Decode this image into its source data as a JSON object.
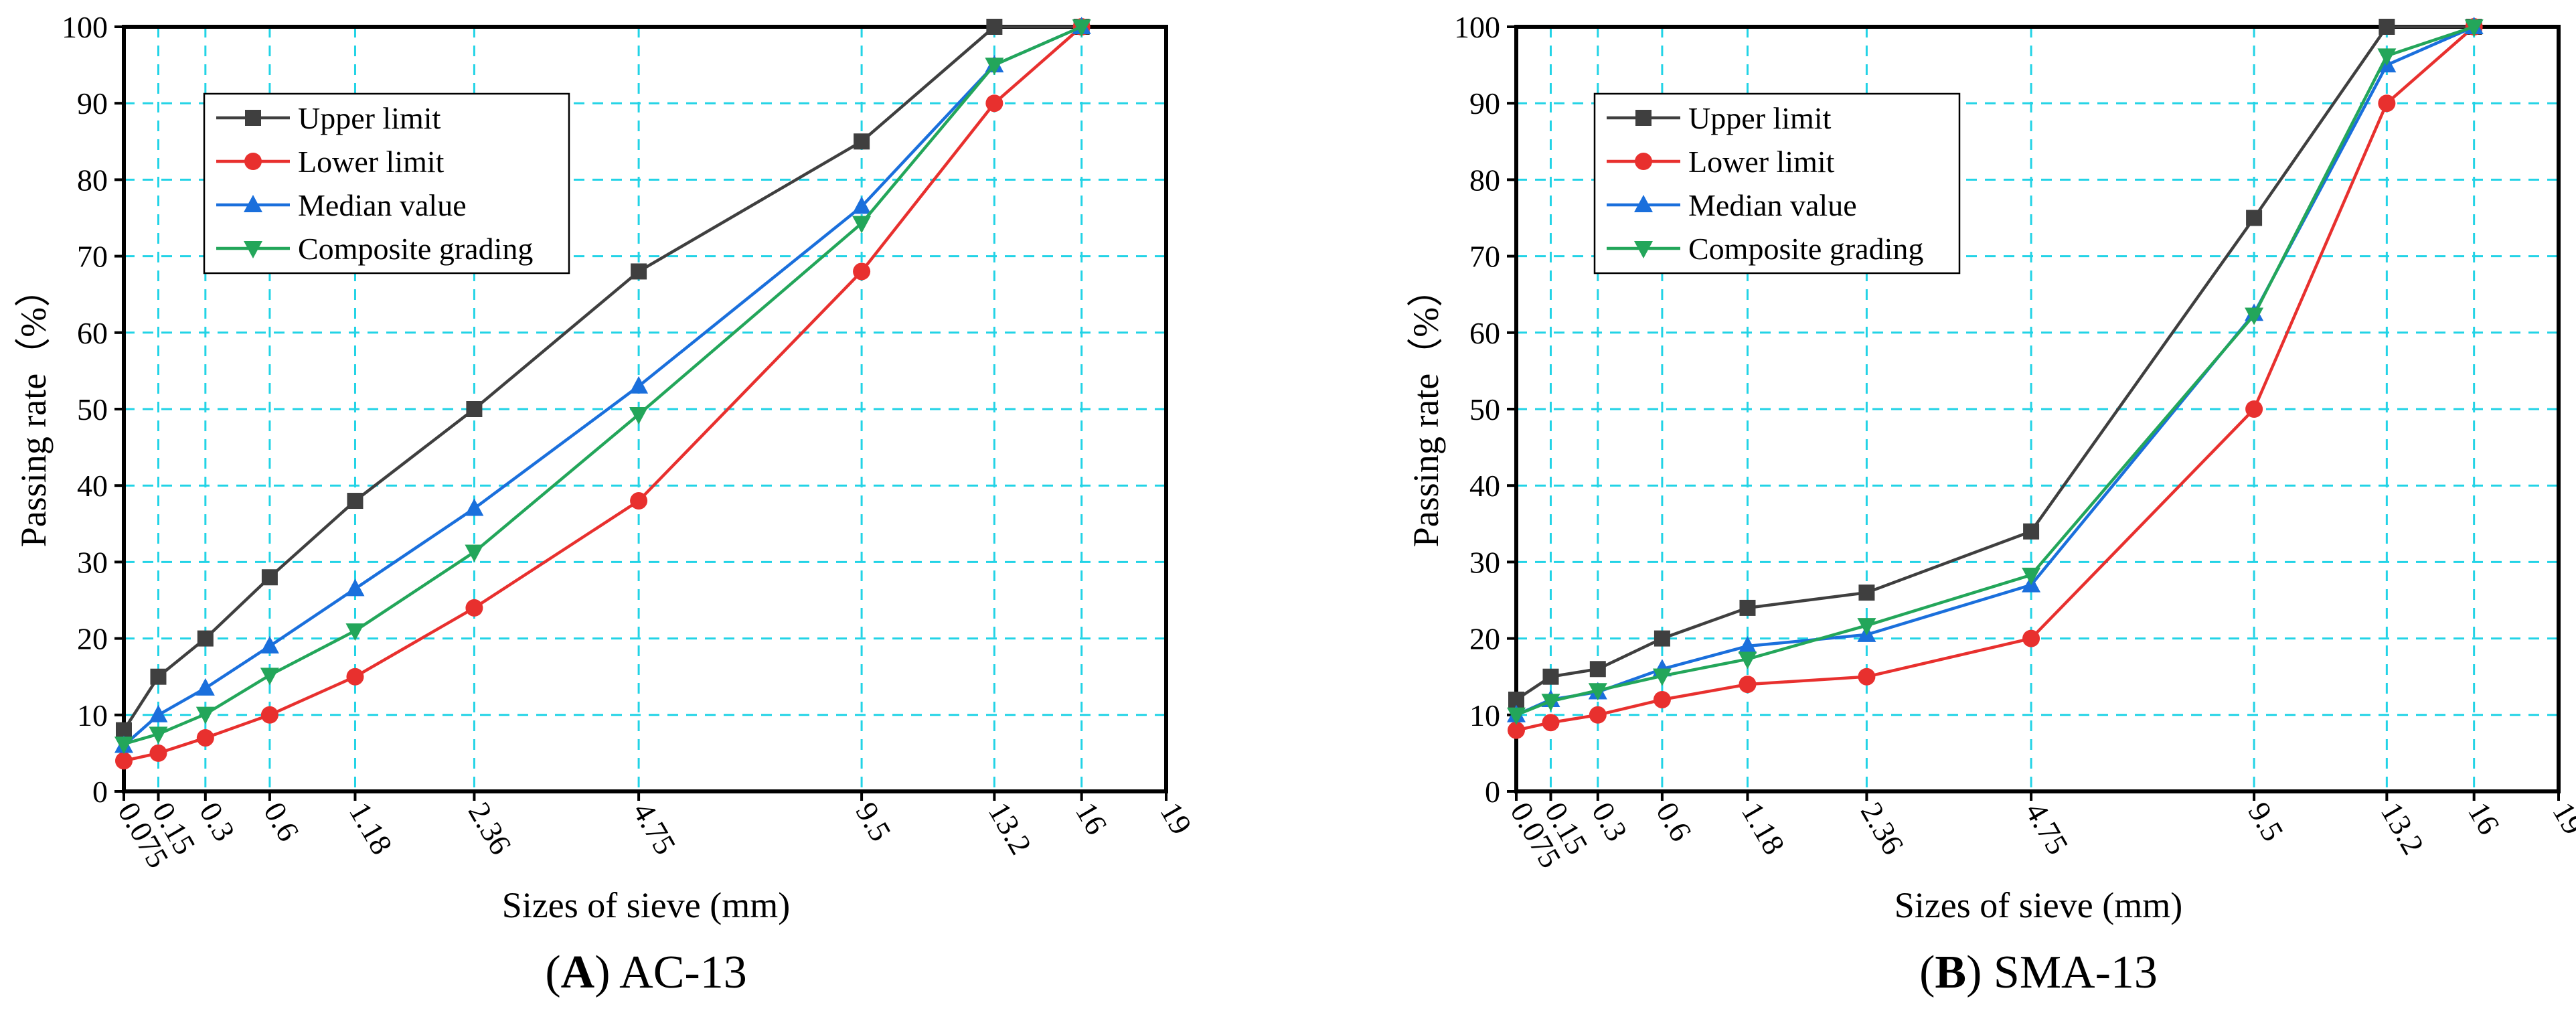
{
  "chart_data": [
    {
      "type": "line",
      "caption_letter": "A",
      "caption_text": " AC-13",
      "xlabel": "Sizes of sieve (mm)",
      "ylabel": "Passing rate（%）",
      "x_scale": "power-0.45 (sieve size)",
      "x": [
        0.075,
        0.15,
        0.3,
        0.6,
        1.18,
        2.36,
        4.75,
        9.5,
        13.2,
        16
      ],
      "x_tick_labels": [
        "0.075",
        "0.15",
        "0.3",
        "0.6",
        "1.18",
        "2.36",
        "4.75",
        "9.5",
        "13.2",
        "16",
        "19"
      ],
      "x_tick_values": [
        0.075,
        0.15,
        0.3,
        0.6,
        1.18,
        2.36,
        4.75,
        9.5,
        13.2,
        16,
        19
      ],
      "ylim": [
        0,
        100
      ],
      "y_ticks": [
        0,
        10,
        20,
        30,
        40,
        50,
        60,
        70,
        80,
        90,
        100
      ],
      "grid": true,
      "legend_position": "top-left",
      "series": [
        {
          "name": "Upper limit",
          "color": "#3f3f3f",
          "marker": "square",
          "values": [
            8,
            15,
            20,
            28,
            38,
            50,
            68,
            85,
            100,
            100
          ]
        },
        {
          "name": "Lower limit",
          "color": "#e8302e",
          "marker": "circle",
          "values": [
            4,
            5,
            7,
            10,
            15,
            24,
            38,
            68,
            90,
            100
          ]
        },
        {
          "name": "Median value",
          "color": "#1a6fdc",
          "marker": "triangle-up",
          "values": [
            6,
            10,
            13.5,
            19,
            26.5,
            37,
            53,
            76.5,
            95,
            100
          ]
        },
        {
          "name": "Composite grading",
          "color": "#23a65a",
          "marker": "triangle-down",
          "values": [
            6.2,
            7.5,
            10.1,
            15.2,
            21,
            31.3,
            49.3,
            74.3,
            95,
            100
          ]
        }
      ]
    },
    {
      "type": "line",
      "caption_letter": "B",
      "caption_text": " SMA-13",
      "xlabel": "Sizes of sieve (mm)",
      "ylabel": "Passing rate（%）",
      "x_scale": "power-0.45 (sieve size)",
      "x": [
        0.075,
        0.15,
        0.3,
        0.6,
        1.18,
        2.36,
        4.75,
        9.5,
        13.2,
        16
      ],
      "x_tick_labels": [
        "0.075",
        "0.15",
        "0.3",
        "0.6",
        "1.18",
        "2.36",
        "4.75",
        "9.5",
        "13.2",
        "16",
        "19"
      ],
      "x_tick_values": [
        0.075,
        0.15,
        0.3,
        0.6,
        1.18,
        2.36,
        4.75,
        9.5,
        13.2,
        16,
        19
      ],
      "ylim": [
        0,
        100
      ],
      "y_ticks": [
        0,
        10,
        20,
        30,
        40,
        50,
        60,
        70,
        80,
        90,
        100
      ],
      "grid": true,
      "legend_position": "top-left",
      "series": [
        {
          "name": "Upper limit",
          "color": "#3f3f3f",
          "marker": "square",
          "values": [
            12,
            15,
            16,
            20,
            24,
            26,
            34,
            75,
            100,
            100
          ]
        },
        {
          "name": "Lower limit",
          "color": "#e8302e",
          "marker": "circle",
          "values": [
            8,
            9,
            10,
            12,
            14,
            15,
            20,
            50,
            90,
            100
          ]
        },
        {
          "name": "Median value",
          "color": "#1a6fdc",
          "marker": "triangle-up",
          "values": [
            10,
            12,
            13,
            16,
            19,
            20.5,
            27,
            62.5,
            95,
            100
          ]
        },
        {
          "name": "Composite grading",
          "color": "#23a65a",
          "marker": "triangle-down",
          "values": [
            10,
            11.8,
            13.2,
            15.1,
            17.3,
            21.7,
            28.3,
            62.3,
            96.2,
            100
          ]
        }
      ]
    }
  ]
}
